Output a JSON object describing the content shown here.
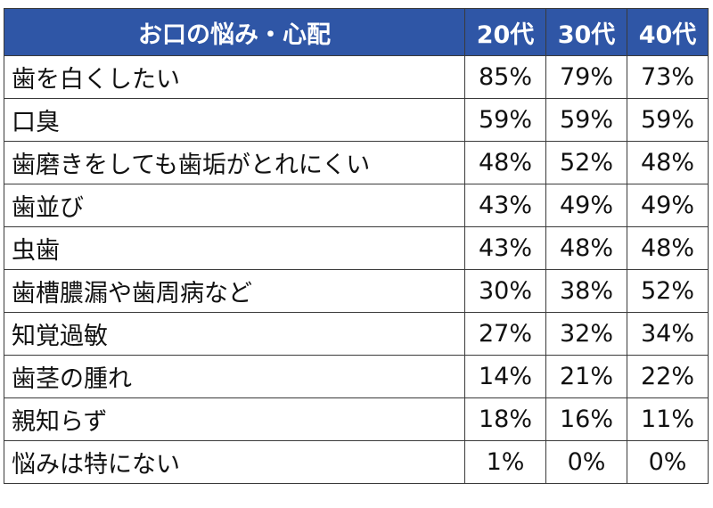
{
  "chart_data": {
    "type": "table",
    "header": {
      "label": "お口の悩み・心配",
      "columns": [
        "20代",
        "30代",
        "40代"
      ]
    },
    "rows": [
      {
        "label": "歯を白くしたい",
        "values": [
          "85%",
          "79%",
          "73%"
        ]
      },
      {
        "label": "口臭",
        "values": [
          "59%",
          "59%",
          "59%"
        ]
      },
      {
        "label": "歯磨きをしても歯垢がとれにくい",
        "values": [
          "48%",
          "52%",
          "48%"
        ]
      },
      {
        "label": "歯並び",
        "values": [
          "43%",
          "49%",
          "49%"
        ]
      },
      {
        "label": "虫歯",
        "values": [
          "43%",
          "48%",
          "48%"
        ]
      },
      {
        "label": "歯槽膿漏や歯周病など",
        "values": [
          "30%",
          "38%",
          "52%"
        ]
      },
      {
        "label": "知覚過敏",
        "values": [
          "27%",
          "32%",
          "34%"
        ]
      },
      {
        "label": "歯茎の腫れ",
        "values": [
          "14%",
          "21%",
          "22%"
        ]
      },
      {
        "label": "親知らず",
        "values": [
          "18%",
          "16%",
          "11%"
        ]
      },
      {
        "label": "悩みは特にない",
        "values": [
          "1%",
          "0%",
          "0%"
        ]
      }
    ],
    "colors": {
      "header_bg": "#2f56a6",
      "header_text": "#ffffff",
      "border": "#3a3a3a"
    }
  }
}
